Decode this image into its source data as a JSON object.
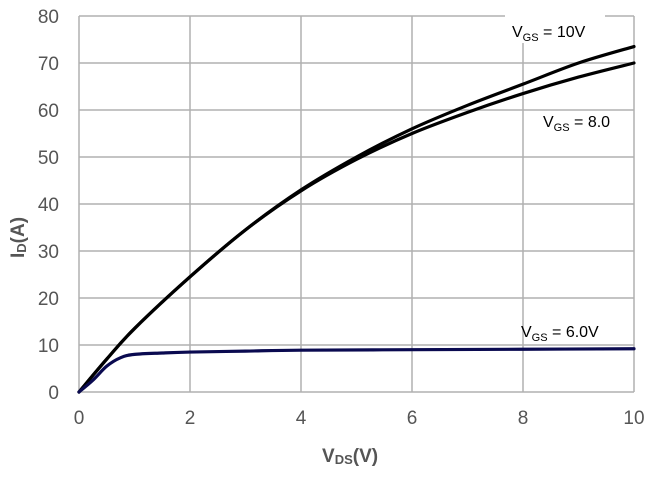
{
  "chart_data": {
    "type": "line",
    "xlabel": {
      "main": "V",
      "sub": "DS",
      "unit": "(V)"
    },
    "ylabel": {
      "main": "I",
      "sub": "D",
      "unit": "(A)"
    },
    "xlim": [
      0,
      10
    ],
    "ylim": [
      0,
      80
    ],
    "xticks": [
      "0",
      "2",
      "4",
      "6",
      "8",
      "10"
    ],
    "yticks": [
      "0",
      "10",
      "20",
      "30",
      "40",
      "50",
      "60",
      "70",
      "80"
    ],
    "grid": true,
    "colors": {
      "grid": "#b0b0b0",
      "vgs10": "#000000",
      "vgs8": "#000000",
      "vgs6": "#0a0a50"
    },
    "series": [
      {
        "name": "VGS = 10V",
        "label": {
          "main": "V",
          "sub": "GS",
          "rest": " = 10V"
        },
        "x": [
          0,
          0.5,
          1,
          2,
          3,
          4,
          5,
          6,
          7,
          8,
          9,
          10
        ],
        "y": [
          0,
          7,
          13.5,
          24.5,
          34.5,
          43,
          50,
          56,
          61,
          65.5,
          70,
          73.5
        ]
      },
      {
        "name": "VGS = 8.0",
        "label": {
          "main": "V",
          "sub": "GS",
          "rest": " = 8.0"
        },
        "x": [
          0,
          0.5,
          1,
          2,
          3,
          4,
          5,
          6,
          7,
          8,
          9,
          10
        ],
        "y": [
          0,
          7,
          13.5,
          24.5,
          34.5,
          42.8,
          49.5,
          55,
          59.5,
          63.5,
          67,
          70
        ]
      },
      {
        "name": "VGS = 6.0V",
        "label": {
          "main": "V",
          "sub": "GS",
          "rest": " = 6.0V"
        },
        "x": [
          0,
          0.25,
          0.5,
          0.75,
          1,
          1.5,
          2,
          3,
          4,
          6,
          8,
          10
        ],
        "y": [
          0,
          2.5,
          5.5,
          7.3,
          8,
          8.3,
          8.5,
          8.7,
          8.9,
          9,
          9.1,
          9.2
        ]
      }
    ]
  }
}
